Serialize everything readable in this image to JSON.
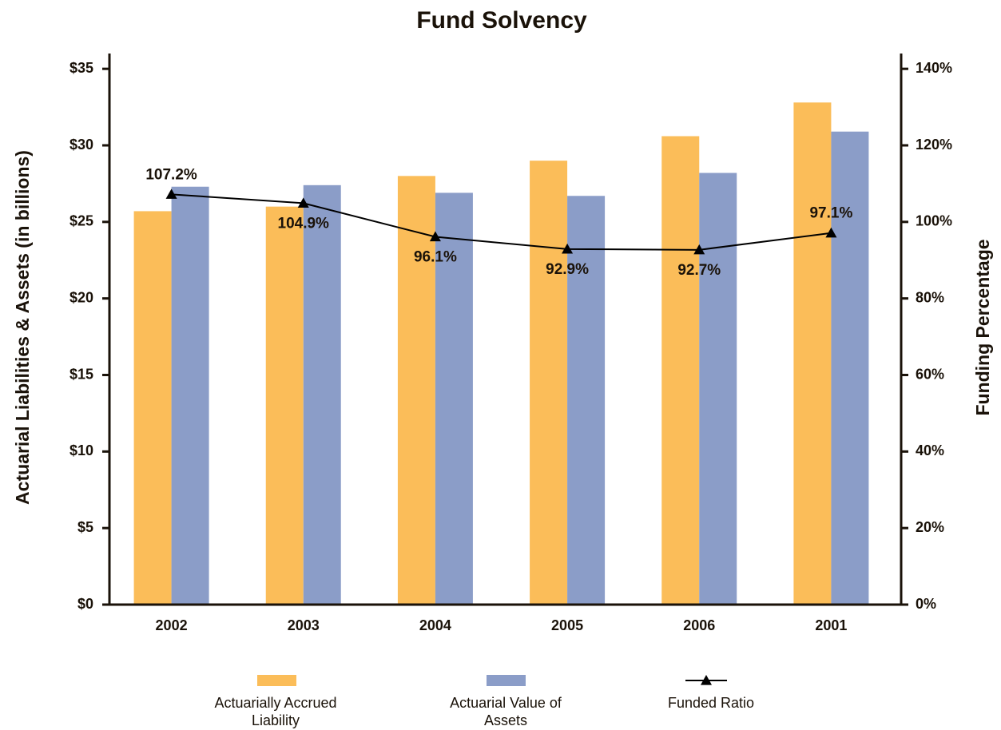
{
  "chart_data": {
    "type": "bar_line",
    "title": "Fund Solvency",
    "y_label": "Actuarial Liabilities & Assets  (in billions)",
    "y2_label": "Funding Percentage",
    "categories": [
      "2002",
      "2003",
      "2004",
      "2005",
      "2006",
      "2001"
    ],
    "series": [
      {
        "name": "Actuarially Accrued Liability",
        "type": "bar",
        "color": "#fbbd59",
        "values": [
          25.7,
          26.0,
          28.0,
          29.0,
          30.6,
          32.8
        ]
      },
      {
        "name": "Actuarial Value of Assets",
        "type": "bar",
        "color": "#8b9dc8",
        "values": [
          27.3,
          27.4,
          26.9,
          26.7,
          28.2,
          30.9
        ]
      },
      {
        "name": "Funded Ratio",
        "type": "line",
        "axis": "y2",
        "color": "#000000",
        "values": [
          107.2,
          104.9,
          96.1,
          92.9,
          92.7,
          97.1
        ],
        "value_labels": [
          "107.2%",
          "104.9%",
          "96.1%",
          "92.9%",
          "92.7%",
          "97.1%"
        ]
      }
    ],
    "ylim": [
      0,
      36
    ],
    "yticks": [
      {
        "value": 0,
        "label": "$0"
      },
      {
        "value": 5,
        "label": "$5"
      },
      {
        "value": 10,
        "label": "$10"
      },
      {
        "value": 15,
        "label": "$15"
      },
      {
        "value": 20,
        "label": "$20"
      },
      {
        "value": 25,
        "label": "$25"
      },
      {
        "value": 30,
        "label": "$30"
      },
      {
        "value": 35,
        "label": "$35"
      }
    ],
    "y2lim": [
      0,
      144
    ],
    "y2ticks": [
      {
        "value": 0,
        "label": "0%"
      },
      {
        "value": 20,
        "label": "20%"
      },
      {
        "value": 40,
        "label": "40%"
      },
      {
        "value": 60,
        "label": "60%"
      },
      {
        "value": 80,
        "label": "80%"
      },
      {
        "value": 100,
        "label": "100%"
      },
      {
        "value": 120,
        "label": "120%"
      },
      {
        "value": 140,
        "label": "140%"
      }
    ],
    "grid": false,
    "legend": "bottom"
  }
}
